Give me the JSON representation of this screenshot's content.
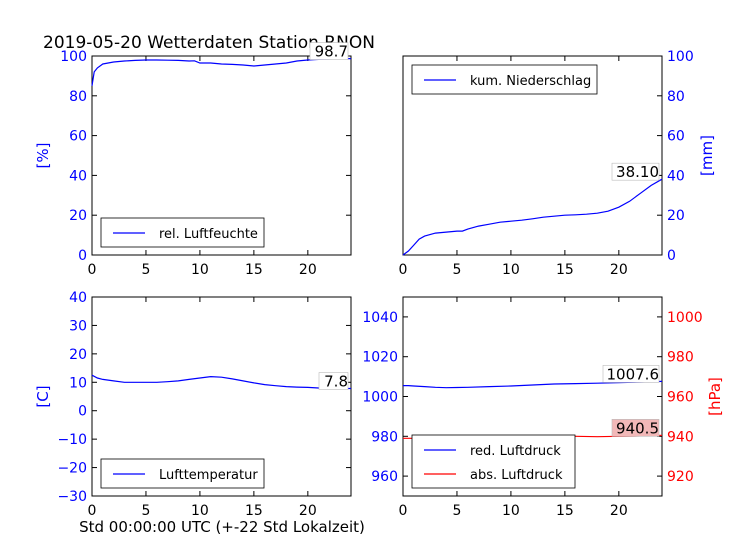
{
  "title": "2019-05-20 Wetterdaten Station RNON",
  "xlabel": "Std 00:00:00 UTC (+-22 Std Lokalzeit)",
  "colors": {
    "blue": "#0000ff",
    "red": "#ff0000",
    "frame": "#000000"
  },
  "chart_data": [
    {
      "type": "line",
      "panel": "top-left",
      "ylabel": "[%]",
      "xlim": [
        0,
        24
      ],
      "ylim": [
        0,
        100
      ],
      "xticks": [
        0,
        5,
        10,
        15,
        20
      ],
      "yticks": [
        0,
        20,
        40,
        60,
        80,
        100
      ],
      "legend": "bottom-left",
      "grid": false,
      "last_value": "98.7",
      "series": [
        {
          "name": "rel. Luftfeuchte",
          "color": "#0000ff",
          "axis": "left",
          "x": [
            0,
            0.2,
            0.5,
            1,
            2,
            3,
            4,
            5,
            6,
            7,
            8,
            9,
            9.5,
            10,
            11,
            12,
            13,
            14,
            15,
            16,
            17,
            18,
            19,
            20,
            21,
            22,
            23,
            24
          ],
          "y": [
            85,
            92,
            94,
            96,
            97,
            97.5,
            97.8,
            98,
            98,
            97.9,
            97.8,
            97.5,
            97.6,
            96.5,
            96.5,
            96,
            95.8,
            95.5,
            95,
            95.5,
            96,
            96.5,
            97.5,
            98,
            98.3,
            98.5,
            98.7,
            98.7
          ]
        }
      ]
    },
    {
      "type": "line",
      "panel": "top-right",
      "ylabel": "[mm]",
      "xlim": [
        0,
        24
      ],
      "ylim": [
        0,
        100
      ],
      "xticks": [
        0,
        5,
        10,
        15,
        20
      ],
      "yticks": [
        0,
        20,
        40,
        60,
        80,
        100
      ],
      "yaxis_side": "right",
      "legend": "top-left",
      "grid": false,
      "last_value": "38.10",
      "series": [
        {
          "name": "kum. Niederschlag",
          "color": "#0000ff",
          "axis": "right",
          "x": [
            0,
            0.5,
            1,
            1.5,
            2,
            3,
            4,
            5,
            5.5,
            6,
            7,
            8,
            9,
            10,
            11,
            12,
            13,
            14,
            15,
            16,
            17,
            18,
            19,
            20,
            21,
            22,
            23,
            24
          ],
          "y": [
            0,
            2,
            5,
            8,
            9.5,
            11,
            11.5,
            12,
            12,
            13,
            14.5,
            15.5,
            16.5,
            17,
            17.5,
            18.2,
            19,
            19.5,
            20,
            20.2,
            20.5,
            21,
            22,
            24,
            27,
            31,
            35,
            38.1
          ]
        }
      ]
    },
    {
      "type": "line",
      "panel": "bottom-left",
      "ylabel": "[C]",
      "xlim": [
        0,
        24
      ],
      "ylim": [
        -30,
        40
      ],
      "xticks": [
        0,
        5,
        10,
        15,
        20
      ],
      "yticks": [
        -30,
        -20,
        -10,
        0,
        10,
        20,
        30,
        40
      ],
      "legend": "bottom-left",
      "grid": false,
      "last_value": "7.8",
      "series": [
        {
          "name": "Lufttemperatur",
          "color": "#0000ff",
          "axis": "left",
          "x": [
            0,
            0.5,
            1,
            2,
            3,
            4,
            5,
            6,
            7,
            8,
            9,
            10,
            11,
            12,
            13,
            14,
            15,
            16,
            17,
            18,
            19,
            20,
            21,
            22,
            23,
            24
          ],
          "y": [
            12.5,
            11.5,
            11,
            10.5,
            10,
            10,
            10,
            10,
            10.2,
            10.5,
            11,
            11.5,
            12,
            11.8,
            11.2,
            10.5,
            9.8,
            9.2,
            8.8,
            8.5,
            8.3,
            8.2,
            8,
            7.9,
            7.8,
            7.8
          ]
        }
      ]
    },
    {
      "type": "line",
      "panel": "bottom-right",
      "ylabel_right": "[hPa]",
      "xlim": [
        0,
        24
      ],
      "ylim_left": [
        950,
        1050
      ],
      "ylim_right": [
        910,
        1010
      ],
      "xticks": [
        0,
        5,
        10,
        15,
        20
      ],
      "yticks_left": [
        960,
        980,
        1000,
        1020,
        1040
      ],
      "yticks_right": [
        920,
        940,
        960,
        980,
        1000
      ],
      "legend": "bottom-left",
      "grid": false,
      "last_value_left": "1007.6",
      "last_value_right": "940.5",
      "series": [
        {
          "name": "red. Luftdruck",
          "color": "#0000ff",
          "axis": "left",
          "x": [
            0,
            0.5,
            1,
            2,
            3,
            4,
            5,
            6,
            8,
            10,
            12,
            14,
            16,
            18,
            20,
            22,
            24
          ],
          "y": [
            1005.5,
            1005.5,
            1005.3,
            1005,
            1004.6,
            1004.4,
            1004.5,
            1004.6,
            1005,
            1005.3,
            1005.8,
            1006.3,
            1006.5,
            1006.7,
            1007,
            1007.3,
            1007.6
          ]
        },
        {
          "name": "abs. Luftdruck",
          "color": "#ff0000",
          "axis": "right",
          "x": [
            0,
            1,
            2,
            3,
            4,
            5,
            6,
            8,
            10,
            12,
            14,
            16,
            18,
            20,
            22,
            24
          ],
          "y": [
            939,
            939,
            938.5,
            938,
            937.6,
            937.8,
            938,
            938.5,
            939,
            939.5,
            940,
            940,
            939.8,
            940,
            940.2,
            940.5
          ]
        }
      ]
    }
  ]
}
